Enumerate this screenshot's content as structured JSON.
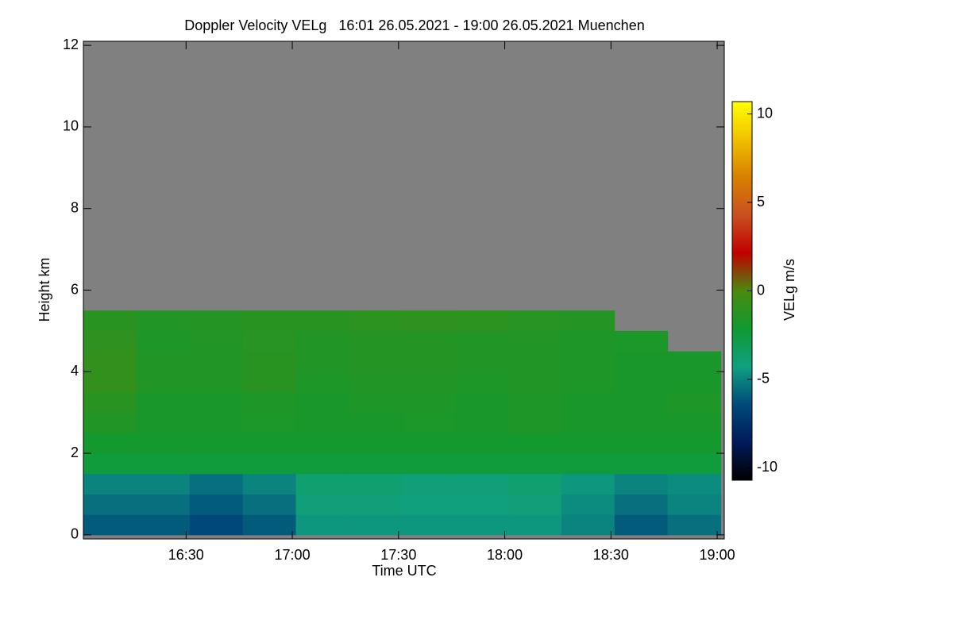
{
  "chart_data": {
    "type": "heatmap",
    "title": "Doppler Velocity VELg   16:01 26.05.2021 - 19:00 26.05.2021 Muenchen",
    "x_label": "Time UTC",
    "y_label": "Height km",
    "colorbar_label": "VELg m/s",
    "xlim": [
      961,
      1142
    ],
    "xticks": [
      {
        "value": 990,
        "label": "16:30"
      },
      {
        "value": 1020,
        "label": "17:00"
      },
      {
        "value": 1050,
        "label": "17:30"
      },
      {
        "value": 1080,
        "label": "18:00"
      },
      {
        "value": 1110,
        "label": "18:30"
      },
      {
        "value": 1140,
        "label": "19:00"
      }
    ],
    "ylim": [
      -0.1,
      12.1
    ],
    "yticks": [
      0,
      2,
      4,
      6,
      8,
      10,
      12
    ],
    "clim": [
      -10.7,
      10.7
    ],
    "cticks": [
      -10,
      -5,
      0,
      5,
      10
    ],
    "colormap": [
      "#000000",
      "#001a5a",
      "#004a7a",
      "#10a080",
      "#109a30",
      "#4a8a10",
      "#c00000",
      "#c85020",
      "#d88000",
      "#f0c000",
      "#ffff00"
    ],
    "missing_color": "#808080",
    "x_bins": [
      961,
      976,
      991,
      1006,
      1021,
      1036,
      1051,
      1066,
      1081,
      1096,
      1111,
      1126,
      1141
    ],
    "y_bins": [
      0,
      0.5,
      1,
      1.5,
      2,
      2.5,
      3,
      3.5,
      4,
      4.5,
      5,
      5.5
    ],
    "z": [
      [
        -6,
        -6,
        -6.5,
        -6,
        -4.5,
        -4.5,
        -4.5,
        -4.5,
        -4.5,
        -5,
        -6,
        -5.5
      ],
      [
        -5.5,
        -5.5,
        -6,
        -5.5,
        -4,
        -4,
        -4.2,
        -4.2,
        -4,
        -4.8,
        -5.5,
        -5
      ],
      [
        -5,
        -5,
        -5.5,
        -5,
        -3.8,
        -3.8,
        -4,
        -4,
        -3.8,
        -4.5,
        -5,
        -4.8
      ],
      [
        -2.5,
        -2.5,
        -2.5,
        -2.5,
        -2.5,
        -2.5,
        -2.5,
        -2.5,
        -2.5,
        -2.5,
        -2.5,
        -2.5
      ],
      [
        -2,
        -2,
        -2,
        -2,
        -2,
        -2,
        -2,
        -2,
        -2,
        -2,
        -2,
        -2
      ],
      [
        -1.5,
        -1.8,
        -1.8,
        -1.7,
        -1.8,
        -1.8,
        -1.7,
        -1.8,
        -1.6,
        -1.8,
        -1.8,
        -1.8
      ],
      [
        -1.2,
        -1.8,
        -1.8,
        -1.6,
        -1.8,
        -1.6,
        -1.6,
        -1.8,
        -1.6,
        -1.8,
        -1.8,
        -1.6
      ],
      [
        -0.8,
        -1.5,
        -1.5,
        -1.2,
        -1.6,
        -1.5,
        -1.5,
        -1.6,
        -1.5,
        -1.6,
        -1.8,
        -1.8
      ],
      [
        -0.8,
        -1.5,
        -1.5,
        -1.2,
        -1.5,
        -1.4,
        -1.4,
        -1.5,
        -1.5,
        -1.6,
        -1.8,
        -1.8
      ],
      [
        -1,
        -1.6,
        -1.5,
        -1.3,
        -1.5,
        -1.4,
        -1.4,
        -1.5,
        -1.5,
        -1.6,
        -1.7,
        null
      ],
      [
        -1.2,
        -1.5,
        -1.4,
        -1.2,
        -1.2,
        -1.1,
        -1,
        -1.1,
        -1.3,
        -1.4,
        null,
        null
      ]
    ]
  }
}
